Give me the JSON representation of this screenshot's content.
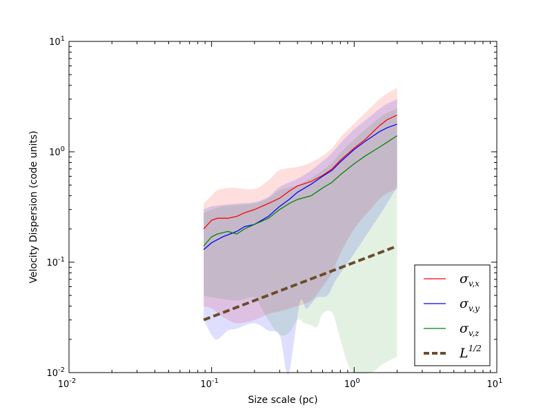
{
  "chart_data": {
    "type": "line",
    "xlabel": "Size scale (pc)",
    "ylabel": "Velocity Dispersion (code units)",
    "xscale": "log",
    "yscale": "log",
    "xlim": [
      0.01,
      10
    ],
    "ylim": [
      0.01,
      10
    ],
    "grid": false,
    "legend_position": "bottom-right",
    "x_ticks": [
      {
        "value": 0.01,
        "base": "10",
        "exp": "-2"
      },
      {
        "value": 0.1,
        "base": "10",
        "exp": "-1"
      },
      {
        "value": 1,
        "base": "10",
        "exp": "0"
      },
      {
        "value": 10,
        "base": "10",
        "exp": "1"
      }
    ],
    "y_ticks": [
      {
        "value": 0.01,
        "base": "10",
        "exp": "-2"
      },
      {
        "value": 0.1,
        "base": "10",
        "exp": "-1"
      },
      {
        "value": 1,
        "base": "10",
        "exp": "0"
      },
      {
        "value": 10,
        "base": "10",
        "exp": "1"
      }
    ],
    "series": [
      {
        "symbol": "σ",
        "subscript": "v,x",
        "color": "#ff0000",
        "band_color": "#ff0000",
        "band_opacity": 0.13,
        "points": [
          [
            0.088,
            0.2
          ],
          [
            0.1,
            0.24
          ],
          [
            0.11,
            0.25
          ],
          [
            0.13,
            0.25
          ],
          [
            0.15,
            0.26
          ],
          [
            0.17,
            0.28
          ],
          [
            0.2,
            0.3
          ],
          [
            0.25,
            0.34
          ],
          [
            0.3,
            0.38
          ],
          [
            0.35,
            0.44
          ],
          [
            0.4,
            0.49
          ],
          [
            0.5,
            0.54
          ],
          [
            0.6,
            0.61
          ],
          [
            0.7,
            0.7
          ],
          [
            0.8,
            0.84
          ],
          [
            1.0,
            1.08
          ],
          [
            1.2,
            1.3
          ],
          [
            1.5,
            1.72
          ],
          [
            1.7,
            1.95
          ],
          [
            2.0,
            2.15
          ]
        ],
        "band_upper": [
          [
            0.088,
            0.34
          ],
          [
            0.1,
            0.4
          ],
          [
            0.11,
            0.45
          ],
          [
            0.13,
            0.47
          ],
          [
            0.15,
            0.47
          ],
          [
            0.2,
            0.46
          ],
          [
            0.25,
            0.55
          ],
          [
            0.3,
            0.68
          ],
          [
            0.4,
            0.73
          ],
          [
            0.5,
            0.8
          ],
          [
            0.6,
            0.92
          ],
          [
            0.7,
            1.08
          ],
          [
            0.8,
            1.35
          ],
          [
            1.0,
            1.8
          ],
          [
            1.3,
            2.5
          ],
          [
            1.6,
            3.2
          ],
          [
            2.0,
            3.8
          ]
        ],
        "band_lower": [
          [
            0.088,
            0.04
          ],
          [
            0.1,
            0.038
          ],
          [
            0.12,
            0.032
          ],
          [
            0.15,
            0.028
          ],
          [
            0.2,
            0.03
          ],
          [
            0.25,
            0.034
          ],
          [
            0.3,
            0.036
          ],
          [
            0.4,
            0.04
          ],
          [
            0.5,
            0.045
          ],
          [
            0.6,
            0.06
          ],
          [
            0.7,
            0.08
          ],
          [
            0.8,
            0.12
          ],
          [
            1.0,
            0.2
          ],
          [
            1.3,
            0.3
          ],
          [
            1.6,
            0.4
          ],
          [
            2.0,
            0.46
          ]
        ]
      },
      {
        "symbol": "σ",
        "subscript": "v,y",
        "color": "#0000ff",
        "band_color": "#0000ff",
        "band_opacity": 0.13,
        "points": [
          [
            0.088,
            0.13
          ],
          [
            0.1,
            0.15
          ],
          [
            0.12,
            0.17
          ],
          [
            0.15,
            0.19
          ],
          [
            0.17,
            0.21
          ],
          [
            0.2,
            0.22
          ],
          [
            0.25,
            0.26
          ],
          [
            0.3,
            0.32
          ],
          [
            0.35,
            0.37
          ],
          [
            0.4,
            0.43
          ],
          [
            0.5,
            0.51
          ],
          [
            0.6,
            0.6
          ],
          [
            0.7,
            0.68
          ],
          [
            0.8,
            0.81
          ],
          [
            1.0,
            1.05
          ],
          [
            1.2,
            1.25
          ],
          [
            1.5,
            1.52
          ],
          [
            1.7,
            1.65
          ],
          [
            2.0,
            1.78
          ]
        ],
        "band_upper": [
          [
            0.088,
            0.3
          ],
          [
            0.1,
            0.32
          ],
          [
            0.12,
            0.33
          ],
          [
            0.15,
            0.34
          ],
          [
            0.2,
            0.35
          ],
          [
            0.25,
            0.39
          ],
          [
            0.3,
            0.48
          ],
          [
            0.4,
            0.57
          ],
          [
            0.5,
            0.68
          ],
          [
            0.6,
            0.82
          ],
          [
            0.7,
            0.98
          ],
          [
            0.8,
            1.2
          ],
          [
            1.0,
            1.6
          ],
          [
            1.3,
            2.1
          ],
          [
            1.6,
            2.6
          ],
          [
            2.0,
            3.0
          ]
        ],
        "band_lower": [
          [
            0.088,
            0.03
          ],
          [
            0.1,
            0.022
          ],
          [
            0.11,
            0.02
          ],
          [
            0.13,
            0.024
          ],
          [
            0.15,
            0.025
          ],
          [
            0.2,
            0.028
          ],
          [
            0.25,
            0.024
          ],
          [
            0.3,
            0.022
          ],
          [
            0.33,
            0.011
          ],
          [
            0.35,
            0.009
          ],
          [
            0.38,
            0.02
          ],
          [
            0.42,
            0.045
          ],
          [
            0.46,
            0.038
          ],
          [
            0.5,
            0.042
          ],
          [
            0.55,
            0.048
          ],
          [
            0.65,
            0.05
          ],
          [
            0.75,
            0.07
          ],
          [
            1.0,
            0.12
          ],
          [
            1.3,
            0.2
          ],
          [
            1.6,
            0.3
          ],
          [
            2.0,
            0.48
          ]
        ]
      },
      {
        "symbol": "σ",
        "subscript": "v,z",
        "color": "#008000",
        "band_color": "#008000",
        "band_opacity": 0.11,
        "points": [
          [
            0.088,
            0.14
          ],
          [
            0.1,
            0.17
          ],
          [
            0.11,
            0.18
          ],
          [
            0.13,
            0.19
          ],
          [
            0.15,
            0.18
          ],
          [
            0.17,
            0.2
          ],
          [
            0.2,
            0.22
          ],
          [
            0.25,
            0.25
          ],
          [
            0.3,
            0.3
          ],
          [
            0.35,
            0.34
          ],
          [
            0.4,
            0.37
          ],
          [
            0.5,
            0.4
          ],
          [
            0.6,
            0.47
          ],
          [
            0.7,
            0.53
          ],
          [
            0.8,
            0.62
          ],
          [
            1.0,
            0.78
          ],
          [
            1.2,
            0.92
          ],
          [
            1.5,
            1.1
          ],
          [
            1.7,
            1.22
          ],
          [
            2.0,
            1.4
          ]
        ],
        "band_upper": [
          [
            0.088,
            0.28
          ],
          [
            0.1,
            0.3
          ],
          [
            0.12,
            0.32
          ],
          [
            0.15,
            0.33
          ],
          [
            0.2,
            0.34
          ],
          [
            0.25,
            0.38
          ],
          [
            0.3,
            0.45
          ],
          [
            0.4,
            0.5
          ],
          [
            0.5,
            0.58
          ],
          [
            0.6,
            0.68
          ],
          [
            0.7,
            0.8
          ],
          [
            0.8,
            0.98
          ],
          [
            1.0,
            1.3
          ],
          [
            1.3,
            1.75
          ],
          [
            1.6,
            2.15
          ],
          [
            2.0,
            2.5
          ]
        ],
        "band_lower": [
          [
            0.088,
            0.05
          ],
          [
            0.1,
            0.048
          ],
          [
            0.15,
            0.045
          ],
          [
            0.2,
            0.048
          ],
          [
            0.22,
            0.04
          ],
          [
            0.25,
            0.03
          ],
          [
            0.3,
            0.022
          ],
          [
            0.35,
            0.023
          ],
          [
            0.4,
            0.03
          ],
          [
            0.45,
            0.028
          ],
          [
            0.5,
            0.027
          ],
          [
            0.55,
            0.026
          ],
          [
            0.6,
            0.034
          ],
          [
            0.7,
            0.035
          ],
          [
            0.8,
            0.02
          ],
          [
            0.9,
            0.012
          ],
          [
            1.0,
            0.01
          ],
          [
            1.3,
            0.01
          ],
          [
            1.6,
            0.012
          ],
          [
            2.0,
            0.014
          ]
        ]
      }
    ],
    "reference_line": {
      "symbol": "L",
      "superscript": "1/2",
      "color": "#6b4c2a",
      "dash": "dashed",
      "points": [
        [
          0.088,
          0.03
        ],
        [
          2.0,
          0.14
        ]
      ]
    },
    "legend": [
      {
        "symbol": "σ",
        "subscript": "v,x",
        "color": "#ff0000",
        "style": "solid"
      },
      {
        "symbol": "σ",
        "subscript": "v,y",
        "color": "#0000ff",
        "style": "solid"
      },
      {
        "symbol": "σ",
        "subscript": "v,z",
        "color": "#008000",
        "style": "solid"
      },
      {
        "symbol": "L",
        "superscript": "1/2",
        "color": "#6b4c2a",
        "style": "dashed"
      }
    ]
  }
}
